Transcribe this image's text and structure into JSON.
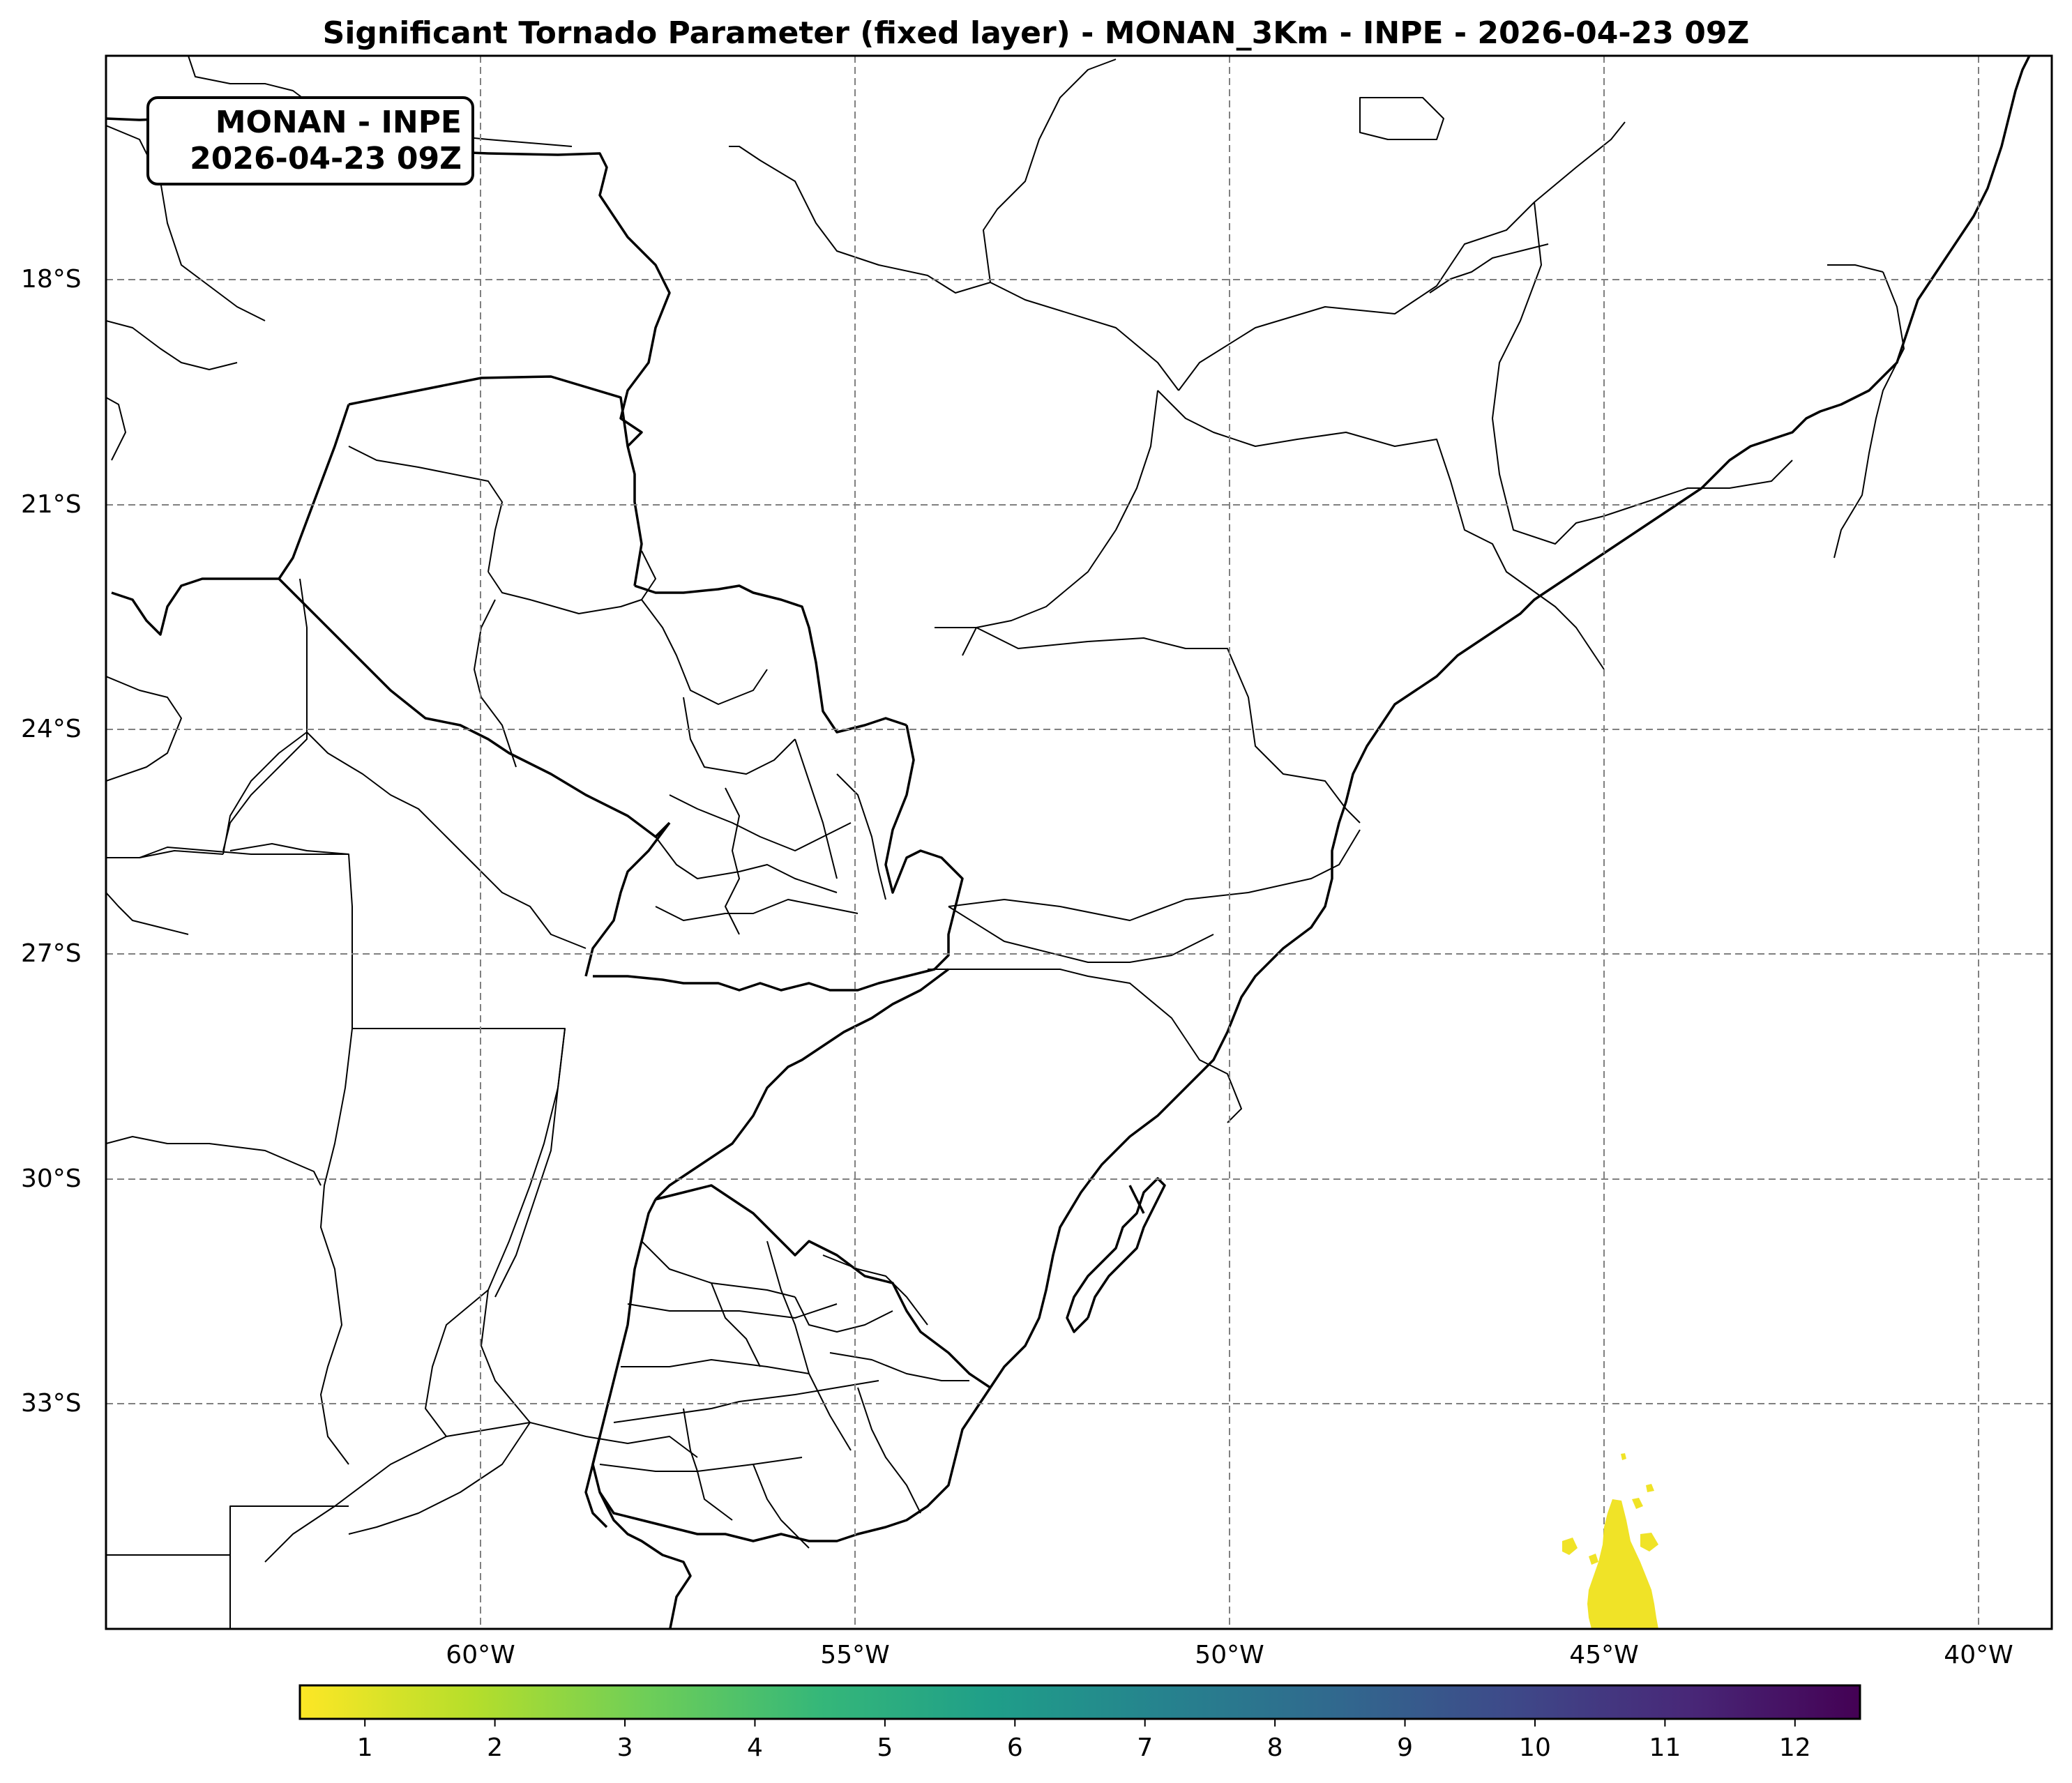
{
  "title": "Significant Tornado Parameter (fixed layer) - MONAN_3Km - INPE - 2026-04-23 09Z",
  "stamp": {
    "line1": "MONAN - INPE",
    "line2": "2026-04-23 09Z"
  },
  "lat_ticks": [
    "18°S",
    "21°S",
    "24°S",
    "27°S",
    "30°S",
    "33°S"
  ],
  "lon_ticks": [
    "60°W",
    "55°W",
    "50°W",
    "45°W",
    "40°W"
  ],
  "colorbar": {
    "ticks": [
      "1",
      "2",
      "3",
      "4",
      "5",
      "6",
      "7",
      "8",
      "9",
      "10",
      "11",
      "12"
    ],
    "colormap": "viridis-reversed",
    "colors": [
      "#fde725",
      "#b5de2b",
      "#6ece58",
      "#35b779",
      "#1f9e89",
      "#26828e",
      "#31688e",
      "#3e4989",
      "#482878",
      "#440154"
    ]
  },
  "chart_data": {
    "type": "map",
    "extent": {
      "lon": [
        -65,
        -39
      ],
      "lat": [
        -37,
        -16
      ]
    },
    "gridlines": true,
    "field_feature": {
      "lon_range": [
        -45.6,
        -44.2
      ],
      "lat_range": [
        -37,
        -34.7
      ],
      "value_range": [
        0.5,
        1.5
      ]
    }
  }
}
